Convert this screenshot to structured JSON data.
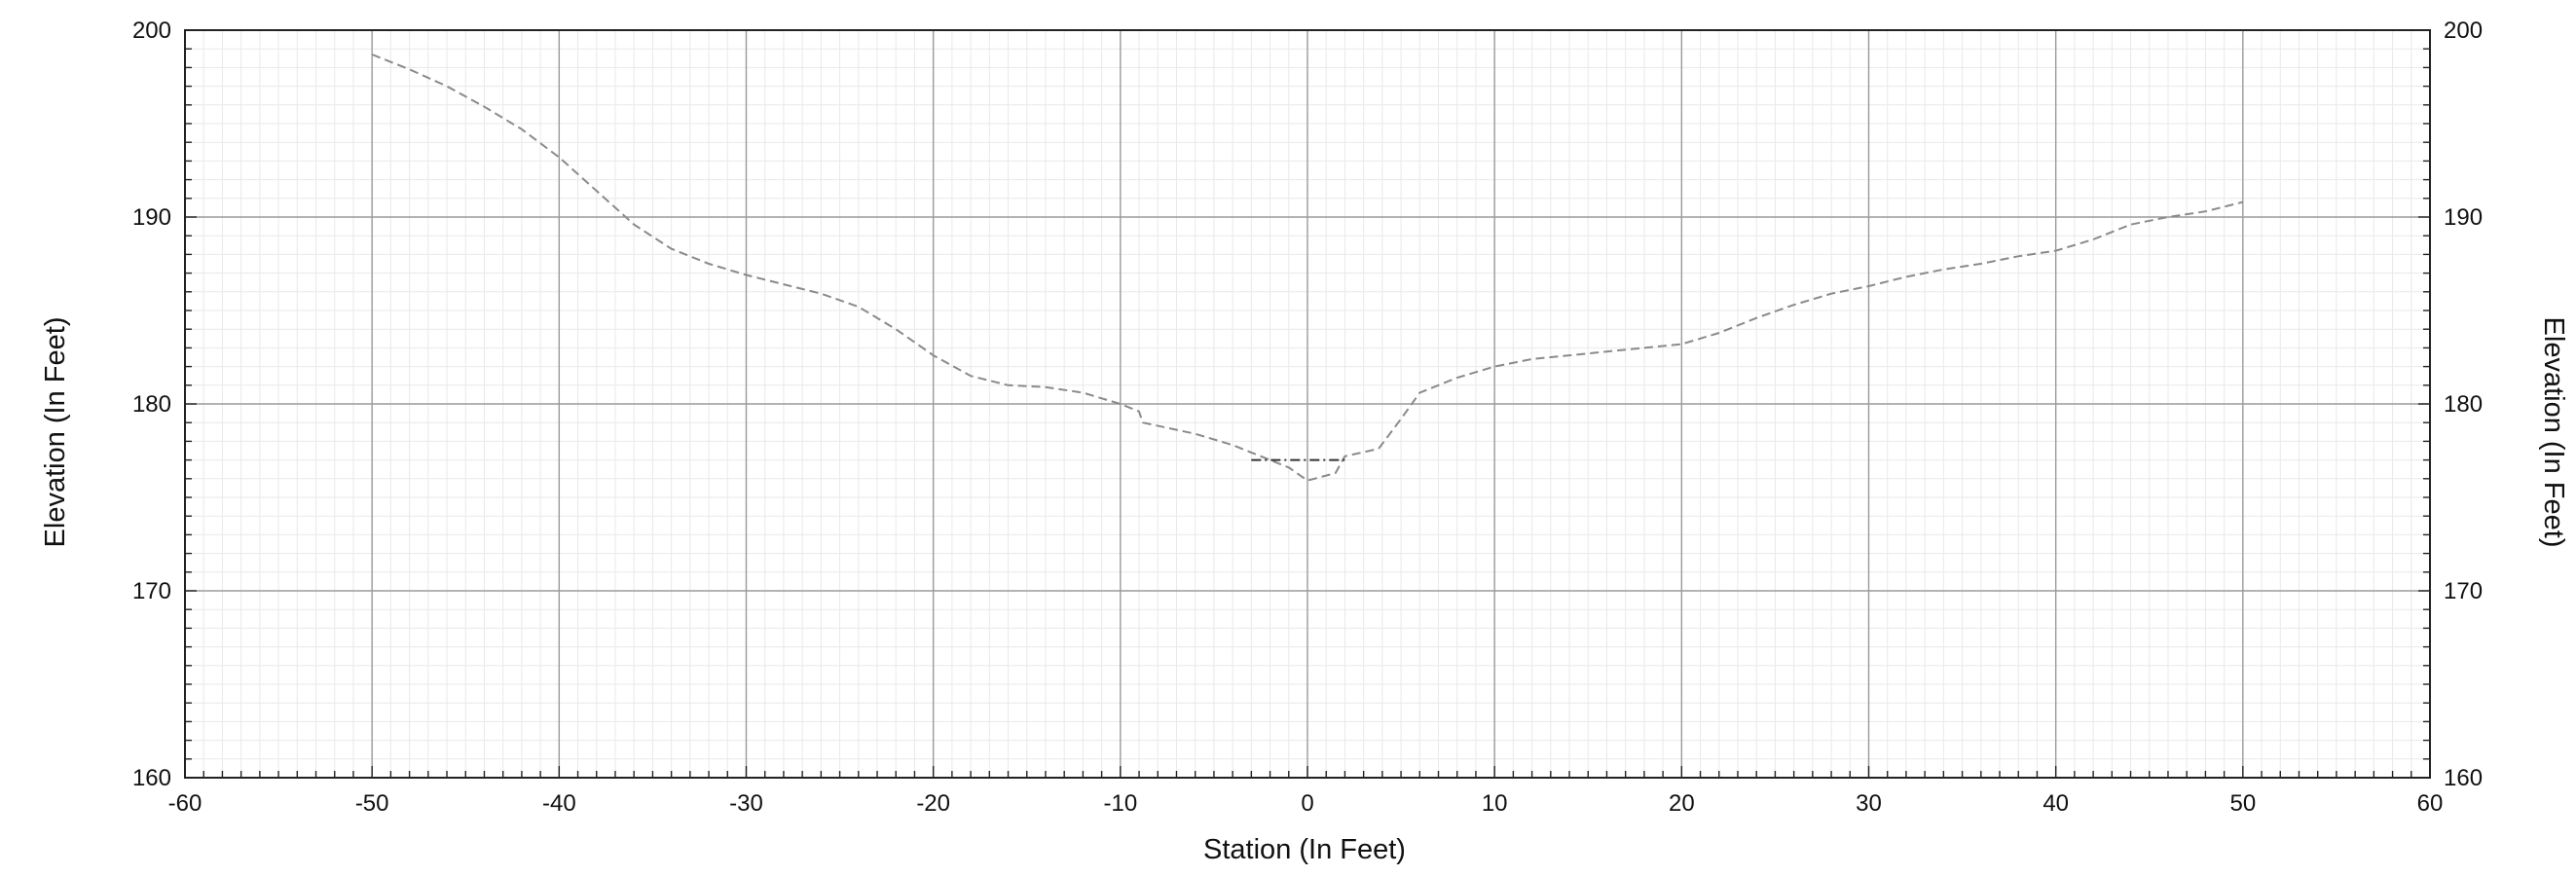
{
  "chart_data": {
    "type": "line",
    "title": "",
    "xlabel": "Station (In Feet)",
    "ylabel": "Elevation (In Feet)",
    "ylabel_right": "Elevation (In Feet)",
    "xlim": [
      -60,
      60
    ],
    "ylim": [
      160,
      200
    ],
    "x_ticks": [
      -60,
      -50,
      -40,
      -30,
      -20,
      -10,
      0,
      10,
      20,
      30,
      40,
      50,
      60
    ],
    "y_ticks": [
      160,
      170,
      180,
      190,
      200
    ],
    "grid": true,
    "minor_grid": true,
    "legend": "none",
    "series": [
      {
        "color": "#8a8a8a",
        "style": "dashed",
        "points": [
          [
            -50,
            198.7
          ],
          [
            -48,
            197.9
          ],
          [
            -46,
            197.0
          ],
          [
            -44,
            195.9
          ],
          [
            -42,
            194.7
          ],
          [
            -40,
            193.2
          ],
          [
            -38,
            191.4
          ],
          [
            -36,
            189.6
          ],
          [
            -34,
            188.3
          ],
          [
            -32,
            187.5
          ],
          [
            -30,
            186.9
          ],
          [
            -28,
            186.4
          ],
          [
            -26,
            185.9
          ],
          [
            -24,
            185.2
          ],
          [
            -22,
            184.0
          ],
          [
            -20,
            182.6
          ],
          [
            -18,
            181.5
          ],
          [
            -16,
            181.0
          ],
          [
            -14,
            180.9
          ],
          [
            -12,
            180.6
          ],
          [
            -10,
            180.0
          ],
          [
            -9,
            179.6
          ],
          [
            -8.8,
            179.0
          ],
          [
            -6,
            178.4
          ],
          [
            -4,
            177.8
          ],
          [
            -3,
            177.4
          ],
          [
            -1,
            176.6
          ],
          [
            0,
            175.9
          ],
          [
            1.5,
            176.3
          ],
          [
            2,
            177.2
          ],
          [
            3.8,
            177.6
          ],
          [
            5,
            179.2
          ],
          [
            6,
            180.6
          ],
          [
            8,
            181.4
          ],
          [
            10,
            182.0
          ],
          [
            12,
            182.4
          ],
          [
            14,
            182.6
          ],
          [
            16,
            182.8
          ],
          [
            18,
            183.0
          ],
          [
            20,
            183.2
          ],
          [
            22,
            183.8
          ],
          [
            24,
            184.6
          ],
          [
            26,
            185.3
          ],
          [
            28,
            185.9
          ],
          [
            30,
            186.3
          ],
          [
            32,
            186.8
          ],
          [
            34,
            187.2
          ],
          [
            36,
            187.5
          ],
          [
            38,
            187.9
          ],
          [
            40,
            188.2
          ],
          [
            42,
            188.8
          ],
          [
            44,
            189.6
          ],
          [
            46,
            190.0
          ],
          [
            48,
            190.3
          ],
          [
            50,
            190.8
          ]
        ]
      },
      {
        "color": "#333333",
        "style": "dash-dot",
        "points": [
          [
            -3,
            177.0
          ],
          [
            2,
            177.0
          ]
        ]
      }
    ]
  }
}
